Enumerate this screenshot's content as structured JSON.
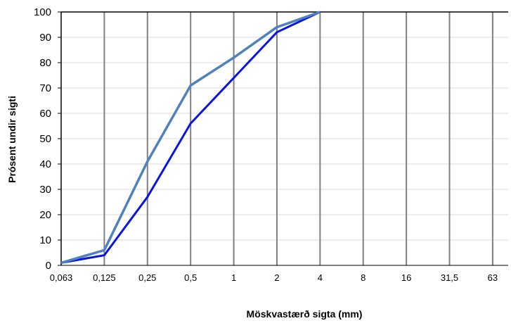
{
  "chart_data": {
    "type": "line",
    "title": "",
    "xlabel": "Möskvastærð sigta (mm)",
    "ylabel": "Prósent undir sigti",
    "categories": [
      "0,063",
      "0,125",
      "0,25",
      "0,5",
      "1",
      "2",
      "4",
      "8",
      "16",
      "31,5",
      "63"
    ],
    "ylim": [
      0,
      100
    ],
    "yticks": [
      "0",
      "10",
      "20",
      "30",
      "40",
      "50",
      "60",
      "70",
      "80",
      "90",
      "100"
    ],
    "grid": true,
    "series": [
      {
        "color": "#0a14e0",
        "values": [
          1,
          4,
          27,
          56,
          74,
          92,
          100,
          null,
          null,
          null,
          null
        ]
      },
      {
        "color": "#4f81bd",
        "values": [
          1,
          6,
          41,
          71,
          82,
          94,
          100,
          null,
          null,
          null,
          null
        ]
      }
    ]
  }
}
